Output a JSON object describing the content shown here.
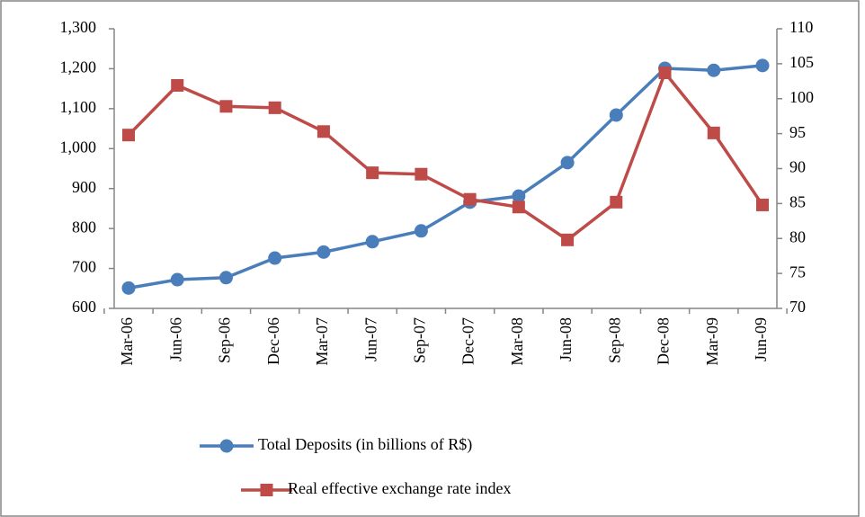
{
  "chart_data": {
    "type": "line",
    "categories": [
      "Mar-06",
      "Jun-06",
      "Sep-06",
      "Dec-06",
      "Mar-07",
      "Jun-07",
      "Sep-07",
      "Dec-07",
      "Mar-08",
      "Jun-08",
      "Sep-08",
      "Dec-08",
      "Mar-09",
      "Jun-09"
    ],
    "ylim": [
      600,
      1300
    ],
    "yticks": [
      600,
      700,
      800,
      900,
      {
        "value": 1000,
        "label": "1,000"
      },
      {
        "value": 1100,
        "label": "1,100"
      },
      {
        "value": 1200,
        "label": "1,200"
      },
      {
        "value": 1300,
        "label": "1,300"
      }
    ],
    "y2lim": [
      70,
      110
    ],
    "y2ticks": [
      70,
      75,
      80,
      85,
      90,
      95,
      100,
      105,
      110
    ],
    "series": [
      {
        "name": "Total Deposits (in  billions of R$)",
        "color": "#4a7ebb",
        "marker": "circle",
        "values": [
          651,
          672,
          677,
          726,
          741,
          767,
          794,
          866,
          881,
          965,
          1084,
          1201,
          1196,
          1208
        ]
      },
      {
        "name": "Real effective exchange rate index",
        "color": "#be4b48",
        "marker": "square",
        "axis": "y2",
        "values": [
          94.8,
          101.9,
          98.9,
          98.7,
          95.3,
          89.4,
          89.2,
          85.6,
          84.5,
          79.8,
          85.2,
          103.7,
          95.1,
          84.8
        ]
      }
    ]
  }
}
